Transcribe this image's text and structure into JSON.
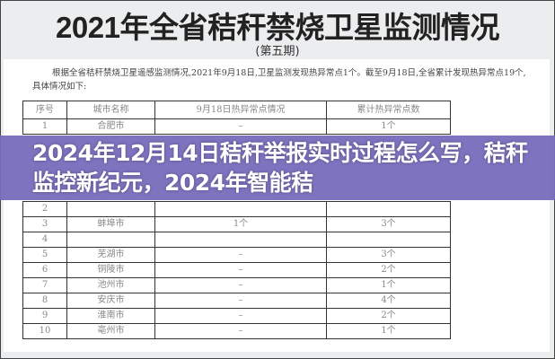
{
  "document": {
    "title": "2021年全省秸秆禁烧卫星监测情况",
    "subtitle": "(第五期)",
    "intro": "根据全省秸秆禁烧卫星遥感监测情况,2021年9月18日,卫星监测发现热异常点1个。截至9月18日,全省累计发现热异常点19个,具体情况如下:",
    "table": {
      "headers": [
        "序号",
        "城市名称",
        "9月18日热异常点情况",
        "累计热异常点数"
      ],
      "rows": [
        [
          "1",
          "合肥市",
          "–",
          "1个"
        ],
        [
          "2",
          "",
          "",
          ""
        ],
        [
          "3",
          "蚌埠市",
          "1个",
          "3个"
        ],
        [
          "4",
          "",
          "",
          ""
        ],
        [
          "5",
          "芜湖市",
          "–",
          "3个"
        ],
        [
          "6",
          "铜陵市",
          "–",
          "2个"
        ],
        [
          "7",
          "池州市",
          "–",
          "1个"
        ],
        [
          "8",
          "安庆市",
          "–",
          "4个"
        ],
        [
          "9",
          "淮南市",
          "–",
          "2个"
        ],
        [
          "10",
          "亳州市",
          "–",
          "1个"
        ]
      ]
    }
  },
  "overlay": {
    "headline": "2024年12月14日秸秆举报实时过程怎么写，秸秆监控新纪元，2024年智能秸",
    "color": "#766cbc"
  }
}
